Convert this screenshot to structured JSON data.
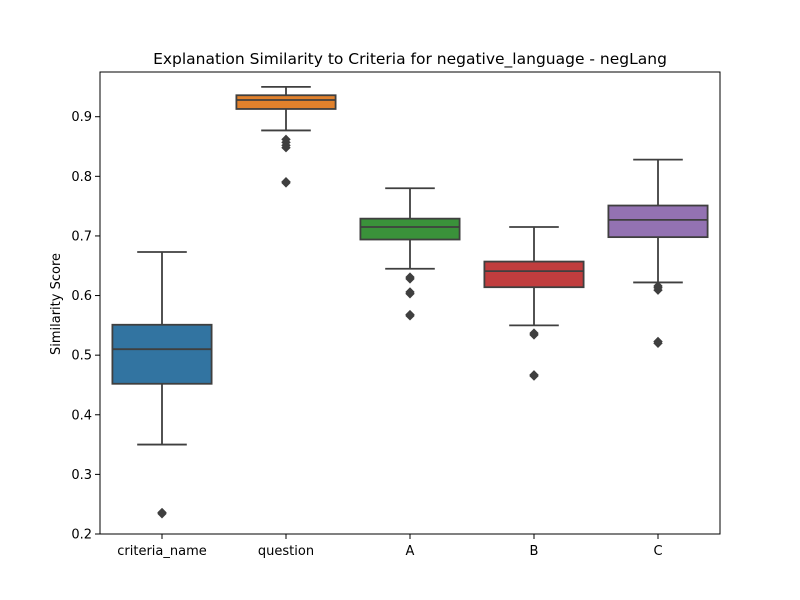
{
  "chart_data": {
    "type": "box",
    "title": "Explanation Similarity to Criteria for negative_language - negLang",
    "xlabel": "",
    "ylabel": "Similarity Score",
    "ylim": [
      0.2,
      0.975
    ],
    "yticks": [
      "0.2",
      "0.3",
      "0.4",
      "0.5",
      "0.6",
      "0.7",
      "0.8",
      "0.9"
    ],
    "grid": false,
    "legend": "none",
    "categories": [
      "criteria_name",
      "question",
      "A",
      "B",
      "C"
    ],
    "boxes": [
      {
        "name": "criteria_name",
        "color": "#3274a1",
        "whisker_low": 0.35,
        "q1": 0.452,
        "median": 0.51,
        "q3": 0.551,
        "whisker_high": 0.673,
        "outliers": [
          0.234,
          0.236
        ]
      },
      {
        "name": "question",
        "color": "#e1812c",
        "whisker_low": 0.877,
        "q1": 0.913,
        "median": 0.928,
        "q3": 0.936,
        "whisker_high": 0.95,
        "outliers": [
          0.848,
          0.852,
          0.857,
          0.862,
          0.789,
          0.791
        ]
      },
      {
        "name": "A",
        "color": "#3a923a",
        "whisker_low": 0.645,
        "q1": 0.694,
        "median": 0.715,
        "q3": 0.729,
        "whisker_high": 0.78,
        "outliers": [
          0.628,
          0.631,
          0.603,
          0.606,
          0.566,
          0.568
        ]
      },
      {
        "name": "B",
        "color": "#c03d3e",
        "whisker_low": 0.55,
        "q1": 0.614,
        "median": 0.641,
        "q3": 0.657,
        "whisker_high": 0.715,
        "outliers": [
          0.534,
          0.537,
          0.465,
          0.467
        ]
      },
      {
        "name": "C",
        "color": "#9372b2",
        "whisker_low": 0.622,
        "q1": 0.698,
        "median": 0.727,
        "q3": 0.751,
        "whisker_high": 0.828,
        "outliers": [
          0.609,
          0.613,
          0.616,
          0.52,
          0.523
        ]
      }
    ],
    "colors": {
      "outline": "#3f3f3f",
      "axis": "#000000",
      "background": "#ffffff"
    }
  }
}
